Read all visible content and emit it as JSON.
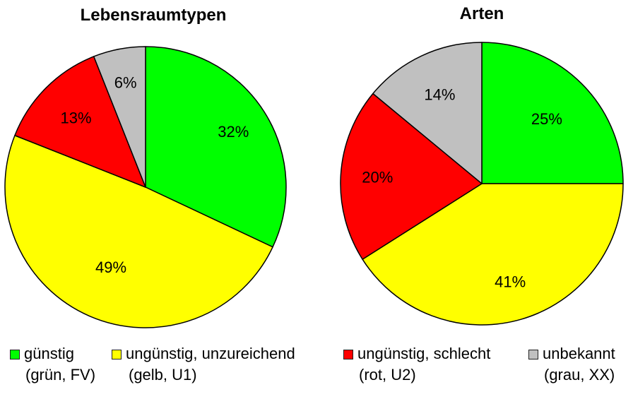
{
  "chart_data": [
    {
      "type": "pie",
      "title": "Lebensraumtypen",
      "slices": [
        {
          "label": "günstig (grün, FV)",
          "value": 32,
          "value_label": "32%",
          "color": "#00ff00"
        },
        {
          "label": "ungünstig, unzureichend (gelb, U1)",
          "value": 49,
          "value_label": "49%",
          "color": "#ffff00"
        },
        {
          "label": "ungünstig, schlecht (rot, U2)",
          "value": 13,
          "value_label": "13%",
          "color": "#ff0000"
        },
        {
          "label": "unbekannt (grau, XX)",
          "value": 6,
          "value_label": "6%",
          "color": "#c0c0c0"
        }
      ]
    },
    {
      "type": "pie",
      "title": "Arten",
      "slices": [
        {
          "label": "günstig (grün, FV)",
          "value": 25,
          "value_label": "25%",
          "color": "#00ff00"
        },
        {
          "label": "ungünstig, unzureichend (gelb, U1)",
          "value": 41,
          "value_label": "41%",
          "color": "#ffff00"
        },
        {
          "label": "ungünstig, schlecht (rot, U2)",
          "value": 20,
          "value_label": "20%",
          "color": "#ff0000"
        },
        {
          "label": "unbekannt (grau, XX)",
          "value": 14,
          "value_label": "14%",
          "color": "#c0c0c0"
        }
      ]
    }
  ],
  "legend": [
    {
      "line1": "günstig",
      "line2": "(grün, FV)",
      "color": "#00ff00"
    },
    {
      "line1": "ungünstig, unzureichend",
      "line2": "(gelb, U1)",
      "color": "#ffff00"
    },
    {
      "line1": "ungünstig, schlecht",
      "line2": "(rot, U2)",
      "color": "#ff0000"
    },
    {
      "line1": "unbekannt",
      "line2": "(grau, XX)",
      "color": "#c0c0c0"
    }
  ]
}
